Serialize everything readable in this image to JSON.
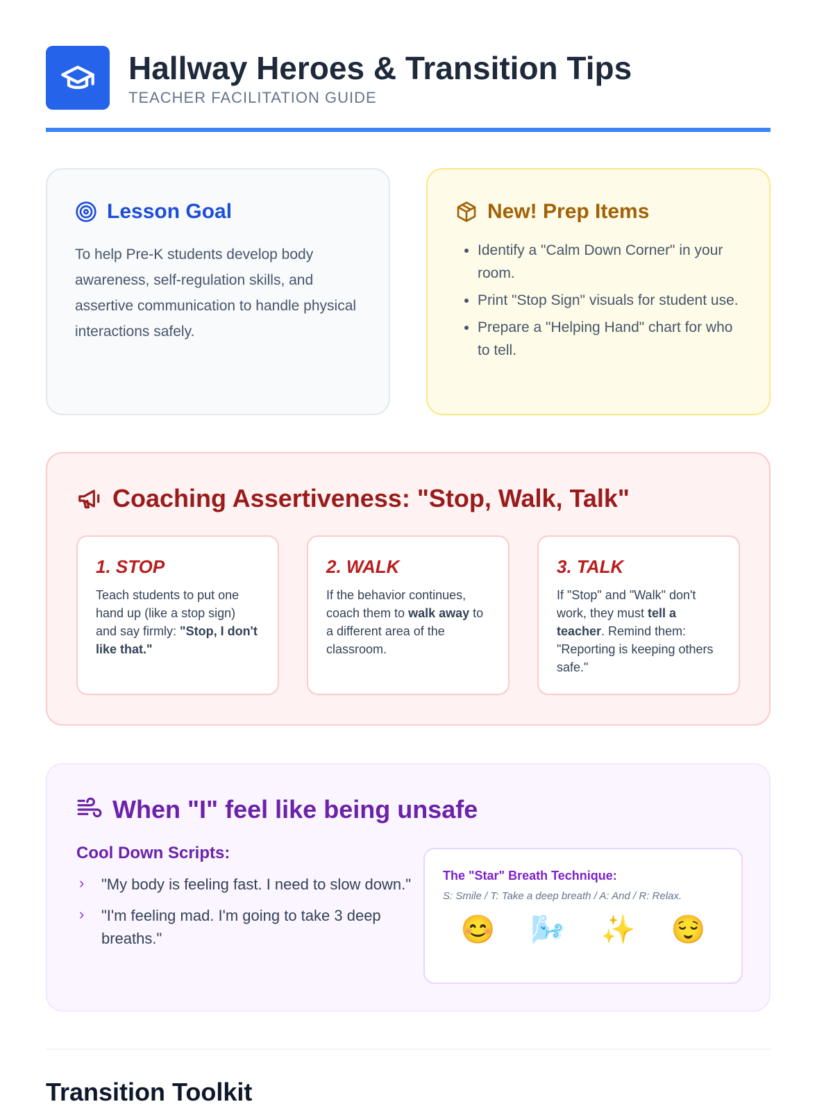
{
  "header": {
    "title": "Hallway Heroes & Transition Tips",
    "subtitle": "TEACHER FACILITATION GUIDE",
    "icon": "graduation-cap-icon",
    "accent": "#2563eb"
  },
  "goal": {
    "title": "Lesson Goal",
    "icon": "target-icon",
    "text": "To help Pre-K students develop body awareness, self-regulation skills, and assertive communication to handle physical interactions safely."
  },
  "prep": {
    "title": "New! Prep Items",
    "icon": "box-icon",
    "items": [
      "Identify a \"Calm Down Corner\" in your room.",
      "Print \"Stop Sign\" visuals for student use.",
      "Prepare a \"Helping Hand\" chart for who to tell."
    ]
  },
  "coaching": {
    "title": "Coaching Assertiveness: \"Stop, Walk, Talk\"",
    "icon": "megaphone-icon",
    "steps": [
      {
        "title": "1. STOP",
        "pre": "Teach students to put one hand up (like a stop sign) and say firmly: ",
        "bold": "\"Stop, I don't like that.\"",
        "post": ""
      },
      {
        "title": "2. WALK",
        "pre": "If the behavior continues, coach them to ",
        "bold": "walk away",
        "post": " to a different area of the classroom."
      },
      {
        "title": "3. TALK",
        "pre": "If \"Stop\" and \"Walk\" don't work, they must ",
        "bold": "tell a teacher",
        "post": ". Remind them: \"Reporting is keeping others safe.\""
      }
    ]
  },
  "calm": {
    "title": "When \"I\" feel like being unsafe",
    "icon": "wind-icon",
    "scripts_title": "Cool Down Scripts:",
    "scripts": [
      "\"My body is feeling fast. I need to slow down.\"",
      "\"I'm feeling mad. I'm going to take 3 deep breaths.\""
    ],
    "star": {
      "title": "The \"Star\" Breath Technique:",
      "desc": "S: Smile / T: Take a deep breath / A: And / R: Relax.",
      "emojis": [
        "😊",
        "🌬️",
        "✨",
        "😌"
      ]
    }
  },
  "next_section": {
    "title": "Transition Toolkit"
  }
}
